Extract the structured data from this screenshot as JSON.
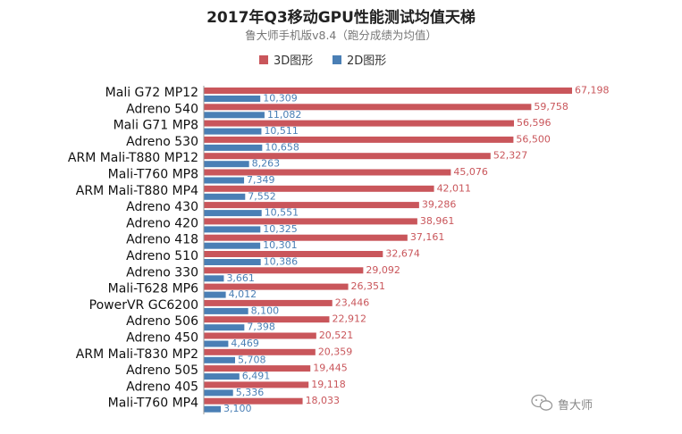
{
  "chart_data": {
    "type": "bar",
    "orientation": "horizontal",
    "title": "2017年Q3移动GPU性能测试均值天梯",
    "subtitle": "鲁大师手机版v8.4（跑分成绩为均值）",
    "xlim": [
      0,
      70000
    ],
    "grid": false,
    "legend_position": "top-center",
    "categories": [
      "Mali G72 MP12",
      "Adreno 540",
      "Mali G71 MP8",
      "Adreno 530",
      "ARM Mali-T880 MP12",
      "Mali-T760 MP8",
      "ARM Mali-T880 MP4",
      "Adreno 430",
      "Adreno 420",
      "Adreno 418",
      "Adreno 510",
      "Adreno 330",
      "Mali-T628 MP6",
      "PowerVR GC6200",
      "Adreno 506",
      "Adreno 450",
      "ARM Mali-T830 MP2",
      "Adreno 505",
      "Adreno 405",
      "Mali-T760 MP4"
    ],
    "series": [
      {
        "name": "3D图形",
        "color": "#c9565b",
        "values": [
          67198,
          59758,
          56596,
          56500,
          52327,
          45076,
          42011,
          39286,
          38961,
          37161,
          32674,
          29092,
          26351,
          23446,
          22912,
          20521,
          20359,
          19445,
          19118,
          18033
        ],
        "labels": [
          "67,198",
          "59,758",
          "56,596",
          "56,500",
          "52,327",
          "45,076",
          "42,011",
          "39,286",
          "38,961",
          "37,161",
          "32,674",
          "29,092",
          "26,351",
          "23,446",
          "22,912",
          "20,521",
          "20,359",
          "19,445",
          "19,118",
          "18,033"
        ]
      },
      {
        "name": "2D图形",
        "color": "#4a7fb5",
        "values": [
          10309,
          11082,
          10511,
          10658,
          8263,
          7349,
          7552,
          10551,
          10325,
          10301,
          10386,
          3661,
          4012,
          8100,
          7398,
          4469,
          5708,
          6491,
          5336,
          3100
        ],
        "labels": [
          "10,309",
          "11,082",
          "10,511",
          "10,658",
          "8,263",
          "7,349",
          "7,552",
          "10,551",
          "10,325",
          "10,301",
          "10,386",
          "3,661",
          "4,012",
          "8,100",
          "7,398",
          "4,469",
          "5,708",
          "6,491",
          "5,336",
          "3,100"
        ]
      }
    ]
  },
  "watermark": {
    "text": "鲁大师",
    "icon": "wechat-icon"
  }
}
